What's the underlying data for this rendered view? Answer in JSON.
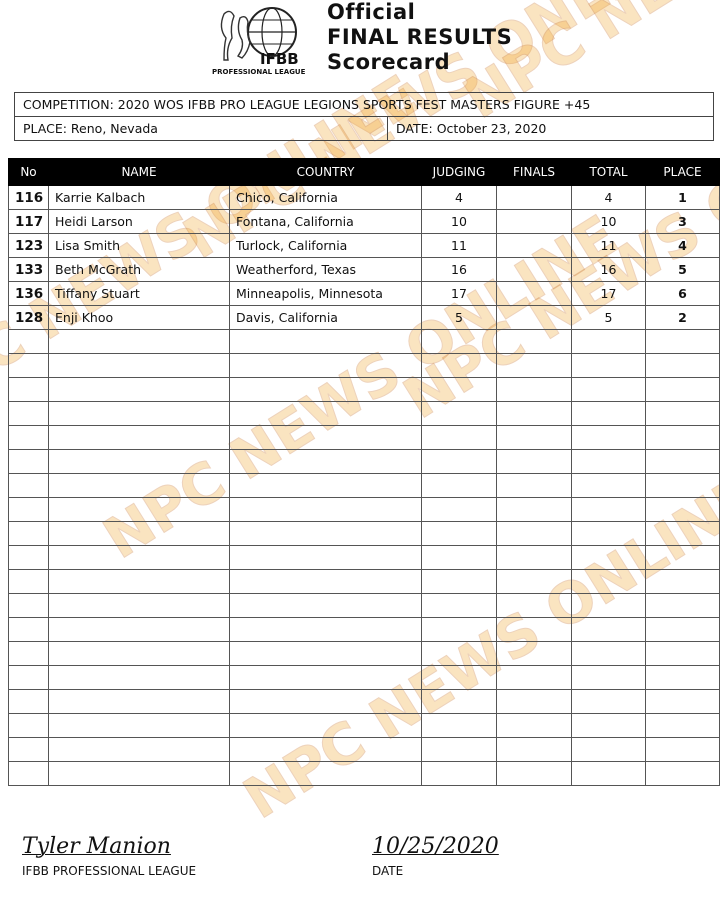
{
  "header": {
    "logo_text": "IFBB PROFESSIONAL LEAGUE",
    "title_lines": [
      "Official",
      "FINAL RESULTS",
      "Scorecard"
    ]
  },
  "info": {
    "competition": "COMPETITION:  2020 WOS IFBB PRO LEAGUE LEGIONS SPORTS FEST MASTERS  FIGURE  +45",
    "place": "PLACE:  Reno, Nevada",
    "date": "DATE:   October 23, 2020"
  },
  "table": {
    "columns": [
      "No",
      "NAME",
      "COUNTRY",
      "JUDGING",
      "FINALS",
      "TOTAL",
      "PLACE"
    ],
    "rows": [
      {
        "no": "116",
        "name": "Karrie Kalbach",
        "country": "Chico, California",
        "judging": "4",
        "finals": "",
        "total": "4",
        "place": "1"
      },
      {
        "no": "117",
        "name": "Heidi Larson",
        "country": "Fontana, California",
        "judging": "10",
        "finals": "",
        "total": "10",
        "place": "3"
      },
      {
        "no": "123",
        "name": "Lisa Smith",
        "country": "Turlock, California",
        "judging": "11",
        "finals": "",
        "total": "11",
        "place": "4"
      },
      {
        "no": "133",
        "name": "Beth McGrath",
        "country": "Weatherford, Texas",
        "judging": "16",
        "finals": "",
        "total": "16",
        "place": "5"
      },
      {
        "no": "136",
        "name": "Tiffany Stuart",
        "country": "Minneapolis, Minnesota",
        "judging": "17",
        "finals": "",
        "total": "17",
        "place": "6"
      },
      {
        "no": "128",
        "name": "Enji Khoo",
        "country": "Davis, California",
        "judging": "5",
        "finals": "",
        "total": "5",
        "place": "2"
      }
    ],
    "empty_rows": 19
  },
  "footer": {
    "signature": "Tyler Manion",
    "signature_label": "IFBB PROFESSIONAL LEAGUE",
    "date_value": "10/25/2020",
    "date_label": "DATE"
  },
  "watermark": {
    "text": "NPC NEWS ONLINE",
    "color": "#f0a020"
  }
}
